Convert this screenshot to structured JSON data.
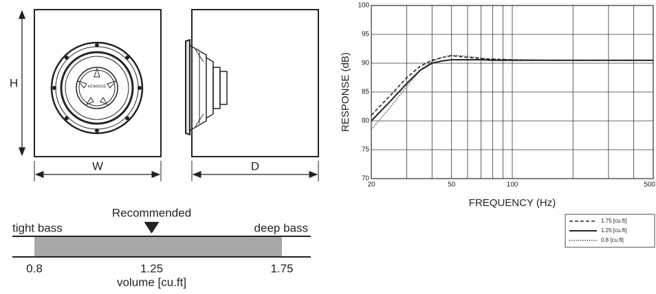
{
  "diagram": {
    "height_label": "H",
    "width_label": "W",
    "depth_label": "D",
    "logo": "KENWOOD"
  },
  "volume_scale": {
    "left_label": "tight bass",
    "right_label": "deep bass",
    "marker_label": "Recommended",
    "ticks": [
      0.8,
      1.25,
      1.75
    ],
    "axis_label": "volume [cu.ft]"
  },
  "chart_data": {
    "type": "line",
    "xlabel": "FREQUENCY (Hz)",
    "ylabel": "RESPONSE (dB)",
    "x": [
      20,
      25,
      30,
      35,
      40,
      45,
      50,
      60,
      70,
      80,
      100,
      150,
      200,
      300,
      500
    ],
    "series": [
      {
        "name": "1.75 [cu.ft]",
        "color": "#222222",
        "style": "dashed",
        "values": [
          81,
          84.5,
          87.5,
          89.5,
          90.5,
          91,
          91.3,
          91,
          90.8,
          90.7,
          90.6,
          90.5,
          90.5,
          90.5,
          90.5
        ]
      },
      {
        "name": "1.25 [cu.ft]",
        "color": "#222222",
        "style": "solid",
        "values": [
          80,
          83.5,
          86.5,
          88.8,
          90,
          90.4,
          90.6,
          90.6,
          90.6,
          90.5,
          90.5,
          90.5,
          90.5,
          90.5,
          90.5
        ]
      },
      {
        "name": "0.8 [cu.ft]",
        "color": "#222222",
        "style": "dotted",
        "values": [
          78.5,
          82.5,
          86,
          88.8,
          90.3,
          91,
          91.4,
          91.2,
          90.9,
          90.7,
          90.6,
          90.5,
          90.5,
          90.5,
          90.5
        ]
      }
    ],
    "xlim": [
      20,
      500
    ],
    "xscale": "log",
    "xticks": [
      20,
      50,
      100,
      500
    ],
    "xgrid": [
      30,
      40,
      60,
      70,
      80,
      90,
      200,
      300,
      400
    ],
    "ylim": [
      70,
      100
    ],
    "yticks": [
      70,
      75,
      80,
      85,
      90,
      95,
      100
    ],
    "grid": true,
    "legend": "lower right"
  }
}
